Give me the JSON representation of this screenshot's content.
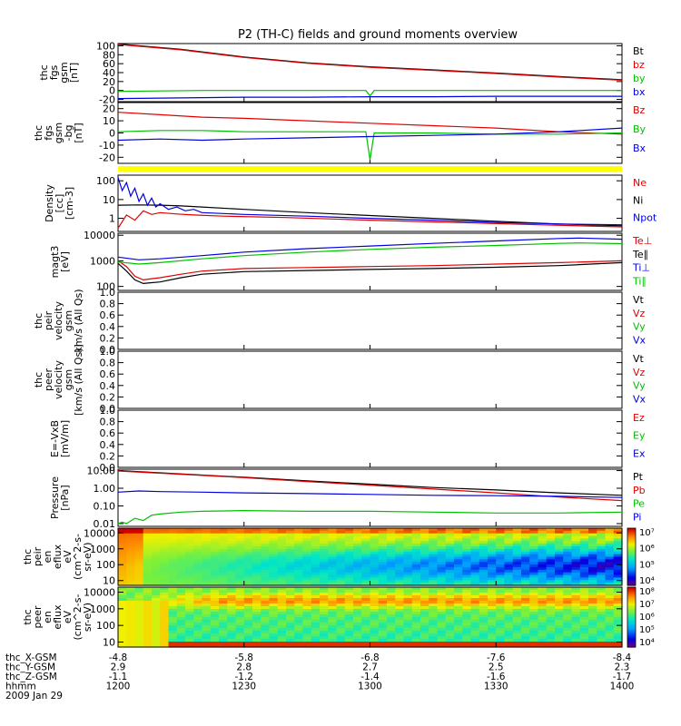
{
  "title": "P2 (TH-C) fields and ground moments overview",
  "chart_data": {
    "type": "line",
    "title": "P2 (TH-C) fields and ground moments overview",
    "x_ticks": [
      "1200",
      "1230",
      "1300",
      "1330",
      "1400"
    ],
    "x_range": [
      "12:00",
      "14:00"
    ],
    "ephemeris": [
      {
        "label": "thc_X-GSM",
        "values": [
          "-4.8",
          "-5.8",
          "-6.8",
          "-7.6",
          "-8.4"
        ]
      },
      {
        "label": "thc_Y-GSM",
        "values": [
          "2.9",
          "2.8",
          "2.7",
          "2.5",
          "2.3"
        ]
      },
      {
        "label": "thc_Z-GSM",
        "values": [
          "-1.1",
          "-1.2",
          "-1.4",
          "-1.6",
          "-1.7"
        ]
      },
      {
        "label": "hhmm",
        "values": []
      },
      {
        "label": "2009 Jan 29",
        "values": []
      }
    ],
    "panels": [
      {
        "id": "fgs-gsm",
        "ylabel": [
          "thc",
          "fgs",
          "gsm",
          "[nT]"
        ],
        "scale": "linear",
        "ylim": [
          -25,
          105
        ],
        "yticks": [
          "100",
          "80",
          "60",
          "40",
          "20",
          "0",
          "-20"
        ],
        "series": [
          {
            "name": "Bt",
            "color": "#000000",
            "x": [
              0,
              15,
              30,
              45,
              60,
              75,
              90,
              105,
              120
            ],
            "y": [
              104,
              92,
              75,
              62,
              53,
              46,
              39,
              31,
              24
            ]
          },
          {
            "name": "bz",
            "color": "#e00000",
            "x": [
              0,
              15,
              30,
              45,
              60,
              75,
              90,
              105,
              120
            ],
            "y": [
              103,
              91,
              74,
              61,
              52,
              45,
              38,
              30,
              23
            ]
          },
          {
            "name": "by",
            "color": "#00c000",
            "x": [
              0,
              10,
              20,
              30,
              45,
              59,
              60,
              61,
              75,
              90,
              105,
              120
            ],
            "y": [
              -2,
              -1,
              0,
              0,
              0,
              0,
              -12,
              0,
              0,
              0,
              0,
              0
            ]
          },
          {
            "name": "bx",
            "color": "#0000e0",
            "x": [
              0,
              10,
              20,
              30,
              45,
              60,
              75,
              90,
              105,
              120
            ],
            "y": [
              -18,
              -17,
              -16,
              -15,
              -15,
              -14,
              -14,
              -13,
              -13,
              -13
            ]
          }
        ]
      },
      {
        "id": "fgs-dsl",
        "ylabel": [
          "thc",
          "fgs",
          "gsm",
          "-bg",
          "[nT]"
        ],
        "scale": "linear",
        "ylim": [
          -25,
          25
        ],
        "yticks": [
          "20",
          "10",
          "0",
          "-10",
          "-20"
        ],
        "series": [
          {
            "name": "Bz",
            "color": "#e00000",
            "x": [
              0,
              10,
              20,
              30,
              45,
              60,
              75,
              90,
              105,
              120
            ],
            "y": [
              17,
              15,
              13,
              12,
              10,
              8,
              6,
              4,
              1,
              -1
            ]
          },
          {
            "name": "By",
            "color": "#00c000",
            "x": [
              0,
              10,
              20,
              30,
              45,
              59,
              60,
              61,
              75,
              90,
              105,
              120
            ],
            "y": [
              1,
              2,
              2,
              1,
              1,
              1,
              -22,
              0,
              0,
              -1,
              -1,
              0
            ]
          },
          {
            "name": "Bx",
            "color": "#0000e0",
            "x": [
              0,
              10,
              20,
              30,
              45,
              60,
              75,
              90,
              105,
              120
            ],
            "y": [
              -6,
              -5,
              -6,
              -5,
              -4,
              -3,
              -2,
              -1,
              1,
              4
            ]
          }
        ]
      },
      {
        "id": "mode-bar",
        "type": "bar",
        "color": "#ffff00"
      },
      {
        "id": "density",
        "ylabel": [
          "Density",
          "[cc]",
          "[cm-3]"
        ],
        "scale": "log",
        "ylim": [
          0.2,
          200
        ],
        "yticks": [
          "100",
          "10",
          "1"
        ],
        "series": [
          {
            "name": "Ne",
            "color": "#e00000",
            "x": [
              0,
              2,
              4,
              6,
              8,
              10,
              14,
              18,
              25,
              40,
              60,
              80,
              100,
              120
            ],
            "y": [
              0.3,
              1.5,
              0.8,
              2.5,
              1.6,
              2,
              1.7,
              1.5,
              1.3,
              1.1,
              0.8,
              0.6,
              0.45,
              0.35
            ]
          },
          {
            "name": "Ni",
            "color": "#000000",
            "x": [
              0,
              5,
              10,
              15,
              20,
              30,
              45,
              60,
              75,
              90,
              105,
              120
            ],
            "y": [
              5,
              5.2,
              5,
              4.6,
              4,
              3,
              2,
              1.4,
              1,
              0.7,
              0.5,
              0.4
            ]
          },
          {
            "name": "Npot",
            "color": "#0000e0",
            "x": [
              0,
              1,
              2,
              3,
              4,
              5,
              6,
              7,
              8,
              9,
              10,
              12,
              14,
              16,
              18,
              20,
              30,
              45,
              60,
              75,
              90,
              105,
              120
            ],
            "y": [
              150,
              30,
              80,
              15,
              40,
              8,
              20,
              5,
              12,
              4,
              6,
              3,
              4,
              2.5,
              3,
              2,
              1.6,
              1.3,
              1,
              0.8,
              0.6,
              0.5,
              0.45
            ]
          }
        ]
      },
      {
        "id": "temperature",
        "ylabel": [
          "magt3",
          "[eV]"
        ],
        "scale": "log",
        "ylim": [
          70,
          12000
        ],
        "yticks": [
          "10000",
          "1000",
          "100"
        ],
        "series": [
          {
            "name": "Te⊥",
            "color": "#e00000",
            "x": [
              0,
              2,
              4,
              6,
              8,
              10,
              15,
              20,
              30,
              45,
              60,
              75,
              90,
              105,
              120
            ],
            "y": [
              1000,
              600,
              250,
              180,
              200,
              220,
              300,
              400,
              500,
              550,
              600,
              650,
              750,
              850,
              1000
            ]
          },
          {
            "name": "Te∥",
            "color": "#000000",
            "x": [
              0,
              2,
              4,
              6,
              8,
              10,
              15,
              20,
              30,
              45,
              60,
              75,
              90,
              105,
              120
            ],
            "y": [
              800,
              400,
              180,
              130,
              140,
              150,
              220,
              300,
              380,
              420,
              460,
              500,
              560,
              650,
              850
            ]
          },
          {
            "name": "Ti⊥",
            "color": "#0000e0",
            "x": [
              0,
              5,
              10,
              20,
              30,
              45,
              60,
              75,
              90,
              105,
              110,
              120
            ],
            "y": [
              1400,
              1100,
              1200,
              1600,
              2200,
              3000,
              3800,
              4800,
              6000,
              7500,
              7800,
              7000
            ]
          },
          {
            "name": "Ti∥",
            "color": "#00c000",
            "x": [
              0,
              5,
              10,
              20,
              30,
              45,
              60,
              75,
              90,
              105,
              110,
              120
            ],
            "y": [
              900,
              750,
              850,
              1200,
              1600,
              2200,
              2800,
              3400,
              4000,
              4800,
              5000,
              4700
            ]
          }
        ]
      },
      {
        "id": "peir-velocity",
        "ylabel": [
          "thc",
          "peir",
          "velocity",
          "gsm",
          "km/s (All Qs)"
        ],
        "scale": "linear",
        "ylim": [
          0,
          1
        ],
        "yticks": [
          "1.0",
          "0.8",
          "0.6",
          "0.4",
          "0.2",
          "0.0"
        ],
        "series": [
          {
            "name": "Vt",
            "color": "#000000",
            "x": [],
            "y": []
          },
          {
            "name": "Vz",
            "color": "#e00000",
            "x": [],
            "y": []
          },
          {
            "name": "Vy",
            "color": "#00c000",
            "x": [],
            "y": []
          },
          {
            "name": "Vx",
            "color": "#0000e0",
            "x": [],
            "y": []
          }
        ]
      },
      {
        "id": "peer-velocity",
        "ylabel": [
          "thc",
          "peer",
          "velocity",
          "gsm",
          "[km/s (All Qs)]"
        ],
        "scale": "linear",
        "ylim": [
          0,
          1
        ],
        "yticks": [
          "1.0",
          "0.8",
          "0.6",
          "0.4",
          "0.2",
          "0.0"
        ],
        "series": [
          {
            "name": "Vt",
            "color": "#000000",
            "x": [],
            "y": []
          },
          {
            "name": "Vz",
            "color": "#e00000",
            "x": [],
            "y": []
          },
          {
            "name": "Vy",
            "color": "#00c000",
            "x": [],
            "y": []
          },
          {
            "name": "Vx",
            "color": "#0000e0",
            "x": [],
            "y": []
          }
        ]
      },
      {
        "id": "efield",
        "ylabel": [
          "E=-VxB",
          "[mV/m]"
        ],
        "scale": "linear",
        "ylim": [
          0,
          1
        ],
        "yticks": [
          "1.0",
          "0.8",
          "0.6",
          "0.4",
          "0.2",
          "0.0"
        ],
        "series": [
          {
            "name": "Ez",
            "color": "#e00000",
            "x": [],
            "y": []
          },
          {
            "name": "Ey",
            "color": "#00c000",
            "x": [],
            "y": []
          },
          {
            "name": "Ex",
            "color": "#0000e0",
            "x": [],
            "y": []
          }
        ]
      },
      {
        "id": "pressure",
        "ylabel": [
          "Pressure",
          "[nPa]"
        ],
        "scale": "log",
        "ylim": [
          0.007,
          12
        ],
        "yticks": [
          "10.00",
          "1.00",
          "0.10",
          "0.01"
        ],
        "series": [
          {
            "name": "Pt",
            "color": "#000000",
            "x": [
              0,
              15,
              30,
              45,
              60,
              75,
              90,
              105,
              120
            ],
            "y": [
              10,
              6.5,
              4.2,
              2.6,
              1.7,
              1.1,
              0.8,
              0.55,
              0.4
            ]
          },
          {
            "name": "Pb",
            "color": "#e00000",
            "x": [
              0,
              15,
              30,
              45,
              60,
              75,
              90,
              105,
              120
            ],
            "y": [
              9.5,
              6.2,
              4,
              2.4,
              1.5,
              0.9,
              0.55,
              0.32,
              0.2
            ]
          },
          {
            "name": "Pe",
            "color": "#00c000",
            "x": [
              0,
              1,
              2,
              4,
              6,
              8,
              10,
              15,
              20,
              30,
              45,
              60,
              75,
              90,
              105,
              120
            ],
            "y": [
              0.01,
              0.012,
              0.01,
              0.02,
              0.015,
              0.03,
              0.035,
              0.045,
              0.05,
              0.055,
              0.05,
              0.05,
              0.045,
              0.04,
              0.04,
              0.045
            ]
          },
          {
            "name": "Pi",
            "color": "#0000e0",
            "x": [
              0,
              5,
              10,
              20,
              30,
              45,
              60,
              75,
              90,
              105,
              120
            ],
            "y": [
              0.6,
              0.7,
              0.65,
              0.6,
              0.55,
              0.5,
              0.45,
              0.4,
              0.38,
              0.35,
              0.3
            ]
          }
        ]
      },
      {
        "id": "peir-spectrogram",
        "type": "heatmap",
        "ylabel": [
          "thc",
          "peir",
          "en",
          "eflux",
          "eV",
          "(cm^2-s-",
          "sr-eV)"
        ],
        "scale": "log",
        "ylim": [
          5,
          20000
        ],
        "yticks": [
          "10000",
          "1000",
          "100",
          "10"
        ],
        "colorbar": {
          "labels": [
            "10⁷",
            "10⁶",
            "10⁵",
            "10⁴"
          ],
          "range": [
            4,
            7.3
          ]
        }
      },
      {
        "id": "peer-spectrogram",
        "type": "heatmap",
        "ylabel": [
          "thc",
          "peer",
          "en",
          "eflux",
          "eV",
          "(cm^2-s-",
          "sr-eV)"
        ],
        "scale": "log",
        "ylim": [
          5,
          20000
        ],
        "yticks": [
          "10000",
          "1000",
          "100",
          "10"
        ],
        "colorbar": {
          "labels": [
            "10⁸",
            "10⁷",
            "10⁶",
            "10⁵",
            "10⁴"
          ],
          "range": [
            3.7,
            8.2
          ]
        }
      }
    ]
  }
}
